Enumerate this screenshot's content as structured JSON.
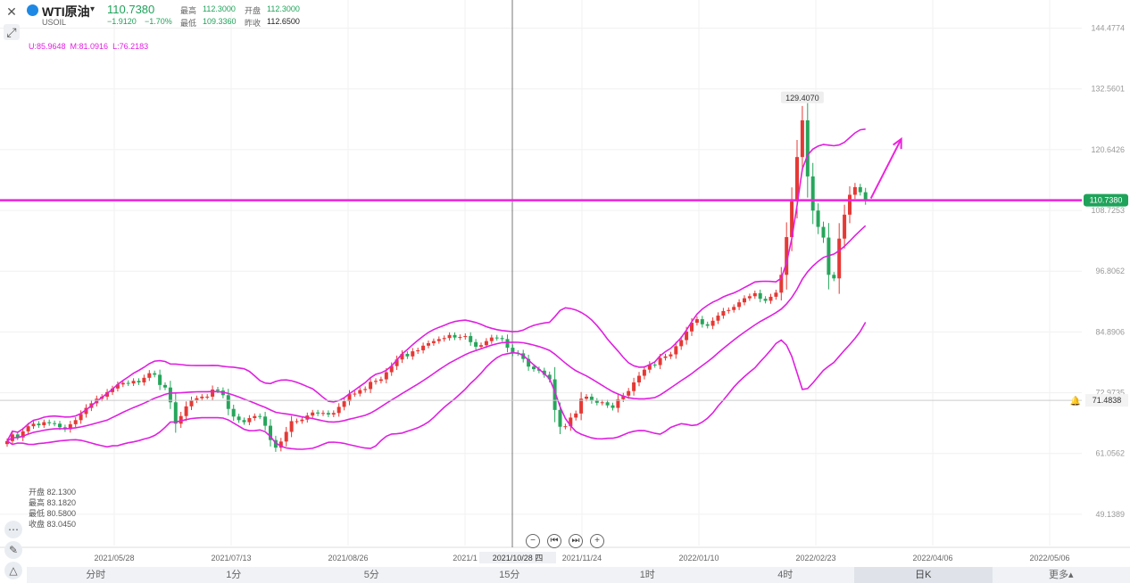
{
  "header": {
    "title": "WTI原油",
    "dropdown_icon": "caret-down-icon",
    "symbol": "USOIL",
    "price": "110.7380",
    "change": "−1.9120",
    "change_pct": "−1.70%",
    "high_label": "最高",
    "high": "112.3000",
    "open_label": "开盘",
    "open": "112.3000",
    "low_label": "最低",
    "low": "109.3360",
    "prev_label": "昨收",
    "prev": "112.6500",
    "boll": "U:85.9648  M:81.0916  L:76.2183"
  },
  "ohlc_panel": {
    "open": "开盘 82.1300",
    "high": "最高 83.1820",
    "low": "最低 80.5800",
    "close": "收盘 83.0450"
  },
  "timeframes": [
    "分时",
    "1分",
    "5分",
    "15分",
    "1时",
    "4时",
    "日K",
    "更多▴"
  ],
  "active_timeframe": "日K",
  "crosshair_date": "2021/10/28 四",
  "colors": {
    "up": "#e53935",
    "down": "#26a65b",
    "boll": "#e020e0",
    "hline": "#ee22dd"
  },
  "chart_data": {
    "type": "candlestick",
    "y_ticks": [
      "144.4774",
      "132.5601",
      "120.6426",
      "108.7253",
      "96.8062",
      "84.8906",
      "72.9735",
      "61.0562",
      "49.1389"
    ],
    "x_ticks": [
      "2021/05/28",
      "2021/07/13",
      "2021/08/26",
      "2021/1",
      "2021/11/24",
      "2022/01/10",
      "2022/02/23",
      "2022/04/06",
      "2022/05/06"
    ],
    "ylim": [
      43,
      150
    ],
    "last_price_label": "110.7380",
    "horizontal_line_label": "71.4838",
    "max_annotation": "129.4070",
    "closes": [
      63.5,
      64.8,
      64.2,
      65.4,
      66.4,
      66.9,
      66.6,
      67.2,
      67.0,
      66.9,
      66.2,
      65.8,
      66.8,
      67.6,
      68.8,
      70.0,
      70.9,
      71.8,
      72.2,
      73.1,
      73.8,
      74.6,
      74.9,
      74.8,
      75.3,
      75.0,
      75.9,
      76.8,
      76.5,
      74.5,
      74.0,
      71.1,
      66.9,
      68.4,
      70.3,
      71.5,
      71.9,
      72.2,
      72.2,
      73.6,
      73.4,
      72.5,
      69.8,
      68.3,
      67.6,
      67.2,
      68.0,
      68.4,
      68.3,
      66.5,
      63.7,
      62.2,
      63.4,
      65.3,
      67.4,
      67.4,
      67.7,
      68.5,
      69.1,
      68.9,
      69.0,
      68.7,
      69.0,
      70.2,
      71.3,
      72.7,
      72.8,
      73.5,
      73.7,
      75.1,
      75.3,
      75.6,
      77.0,
      78.2,
      79.5,
      80.6,
      80.1,
      81.1,
      81.3,
      82.2,
      82.7,
      83.1,
      83.5,
      83.7,
      84.3,
      83.8,
      83.9,
      84.1,
      82.9,
      82.0,
      82.3,
      83.1,
      83.8,
      83.7,
      83.5,
      81.8,
      80.8,
      80.7,
      79.6,
      78.1,
      77.6,
      77.3,
      76.5,
      75.6,
      69.6,
      66.3,
      66.4,
      68.1,
      68.9,
      71.8,
      72.2,
      71.4,
      71.0,
      71.1,
      70.5,
      70.0,
      71.7,
      72.4,
      73.3,
      75.0,
      76.3,
      77.5,
      78.5,
      78.4,
      79.8,
      80.1,
      80.5,
      82.1,
      83.3,
      85.0,
      86.7,
      87.4,
      86.4,
      86.1,
      87.1,
      88.1,
      89.0,
      89.2,
      89.8,
      90.7,
      91.5,
      91.9,
      92.5,
      91.4,
      91.0,
      91.8,
      92.6,
      96.1,
      103.5,
      110.5,
      119.2,
      126.4,
      115.4,
      108.7,
      105.5,
      103.4,
      96.1,
      95.4,
      103.2,
      107.9,
      111.8,
      113.3,
      112.3,
      110.7
    ]
  }
}
